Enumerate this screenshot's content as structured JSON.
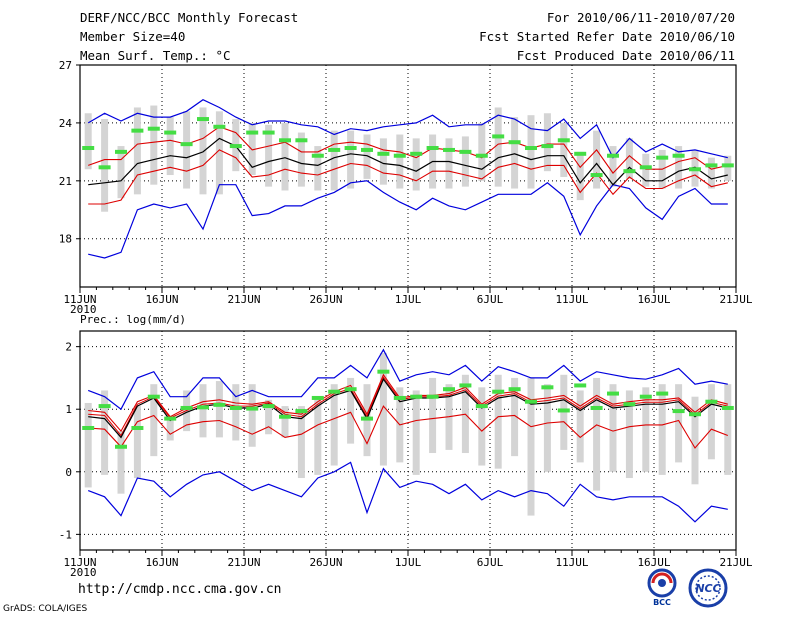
{
  "header": {
    "title": "DERF/NCC/BCC Monthly Forecast",
    "member_size": "Member Size=40",
    "variable": "Mean Surf. Temp.: °C",
    "period": "For 2010/06/11-2010/07/20",
    "fcst_started": "Fcst Started Refer Date 2010/06/10",
    "fcst_produced": "Fcst Produced Date 2010/06/11"
  },
  "footer": {
    "url": "http://cmdp.ncc.cma.gov.cn",
    "credit": "GrADS: COLA/IGES",
    "logo_left": "BCC",
    "logo_right": "NCC"
  },
  "colors": {
    "mean": "#000000",
    "spread": "#dd0000",
    "extreme": "#0000dd",
    "box": "#d4d4d4",
    "marker": "#44dd44"
  },
  "chart_data": [
    {
      "type": "line",
      "title": "Mean Surf. Temp.: °C",
      "xlabel": "",
      "ylabel": "",
      "ylim": [
        15.5,
        27
      ],
      "yticks": [
        18,
        21,
        24,
        27
      ],
      "xticks": [
        {
          "day": 0,
          "label": "11JUN",
          "sub": "2010"
        },
        {
          "day": 5,
          "label": "16JUN"
        },
        {
          "day": 10,
          "label": "21JUN"
        },
        {
          "day": 15,
          "label": "26JUN"
        },
        {
          "day": 20,
          "label": "1JUL"
        },
        {
          "day": 25,
          "label": "6JUL"
        },
        {
          "day": 30,
          "label": "11JUL"
        },
        {
          "day": 35,
          "label": "16JUL"
        },
        {
          "day": 40,
          "label": "21JUL"
        }
      ],
      "x": [
        0,
        1,
        2,
        3,
        4,
        5,
        6,
        7,
        8,
        9,
        10,
        11,
        12,
        13,
        14,
        15,
        16,
        17,
        18,
        19,
        20,
        21,
        22,
        23,
        24,
        25,
        26,
        27,
        28,
        29,
        30,
        31,
        32,
        33,
        34,
        35,
        36,
        37,
        38,
        39
      ],
      "series": [
        {
          "name": "mean",
          "values": [
            20.8,
            20.9,
            21.0,
            21.9,
            22.1,
            22.3,
            22.2,
            22.5,
            23.2,
            22.8,
            21.7,
            22.0,
            22.2,
            21.9,
            21.8,
            22.2,
            22.4,
            22.3,
            21.9,
            21.8,
            21.5,
            22.0,
            22.0,
            21.8,
            21.6,
            22.2,
            22.4,
            22.1,
            22.3,
            22.3,
            20.9,
            21.9,
            20.8,
            21.7,
            21.0,
            21.0,
            21.5,
            21.7,
            21.1,
            21.3
          ]
        },
        {
          "name": "upper",
          "values": [
            21.8,
            22.1,
            22.1,
            22.9,
            23.0,
            23.1,
            22.9,
            23.2,
            23.8,
            23.5,
            22.6,
            22.8,
            23.0,
            22.5,
            22.5,
            22.9,
            23.0,
            22.9,
            22.6,
            22.5,
            22.2,
            22.7,
            22.6,
            22.5,
            22.2,
            22.9,
            23.0,
            22.7,
            22.9,
            22.9,
            21.7,
            22.6,
            21.4,
            22.3,
            21.6,
            21.6,
            22.0,
            22.2,
            21.6,
            21.8
          ]
        },
        {
          "name": "lower",
          "values": [
            19.8,
            19.8,
            20.0,
            21.3,
            21.5,
            21.7,
            21.5,
            21.8,
            22.6,
            22.2,
            21.2,
            21.3,
            21.6,
            21.4,
            21.3,
            21.6,
            21.9,
            21.8,
            21.4,
            21.3,
            21.0,
            21.5,
            21.5,
            21.3,
            21.1,
            21.7,
            21.9,
            21.6,
            21.8,
            21.8,
            20.4,
            21.4,
            20.3,
            21.2,
            20.6,
            20.6,
            21.0,
            21.3,
            20.7,
            20.9
          ]
        },
        {
          "name": "max",
          "values": [
            24.0,
            24.5,
            24.1,
            24.5,
            24.3,
            24.3,
            24.6,
            25.2,
            24.8,
            24.3,
            23.9,
            24.1,
            24.1,
            23.9,
            23.8,
            23.4,
            23.7,
            23.6,
            23.8,
            23.9,
            24.0,
            24.4,
            23.8,
            23.9,
            23.9,
            24.4,
            24.2,
            23.7,
            23.6,
            24.2,
            23.2,
            23.9,
            22.2,
            23.2,
            22.5,
            22.9,
            22.5,
            22.6,
            22.4,
            22.2
          ]
        },
        {
          "name": "min",
          "values": [
            17.2,
            17.0,
            17.3,
            19.5,
            19.8,
            19.6,
            19.8,
            18.5,
            20.8,
            20.8,
            19.2,
            19.3,
            19.7,
            19.7,
            20.1,
            20.4,
            20.9,
            21.0,
            20.4,
            19.9,
            19.5,
            20.1,
            19.7,
            19.5,
            19.9,
            20.3,
            20.3,
            20.3,
            20.9,
            20.2,
            18.2,
            19.7,
            20.8,
            20.6,
            19.6,
            19.0,
            20.2,
            20.6,
            19.8,
            19.8
          ]
        }
      ],
      "boxes": {
        "low": [
          21.6,
          19.4,
          20.1,
          20.3,
          20.8,
          21.3,
          20.6,
          20.3,
          20.3,
          21.5,
          21.3,
          20.7,
          20.5,
          20.7,
          20.5,
          20.5,
          20.6,
          21.1,
          20.8,
          20.6,
          20.5,
          20.6,
          20.6,
          20.7,
          21.0,
          20.7,
          20.6,
          20.6,
          21.5,
          21.2,
          20.0,
          20.6,
          20.7,
          21.1,
          20.7,
          20.6,
          20.6,
          20.7,
          20.6,
          21.0
        ],
        "high": [
          24.5,
          24.2,
          22.8,
          24.8,
          24.9,
          24.3,
          24.6,
          24.8,
          24.6,
          24.2,
          24.0,
          23.9,
          24.0,
          23.5,
          22.8,
          23.6,
          23.6,
          23.4,
          23.2,
          23.4,
          23.2,
          23.4,
          23.2,
          23.3,
          24.0,
          24.8,
          24.3,
          24.4,
          24.5,
          24.0,
          22.5,
          23.6,
          22.8,
          23.2,
          22.4,
          22.6,
          22.8,
          22.6,
          22.2,
          22.3
        ]
      },
      "markers": [
        22.7,
        21.7,
        22.5,
        23.6,
        23.7,
        23.5,
        22.9,
        24.2,
        23.8,
        22.8,
        23.5,
        23.5,
        23.1,
        23.1,
        22.3,
        22.6,
        22.7,
        22.6,
        22.4,
        22.3,
        22.4,
        22.7,
        22.6,
        22.5,
        22.3,
        23.3,
        23.0,
        22.7,
        22.8,
        23.1,
        22.4,
        21.3,
        22.3,
        21.5,
        21.7,
        22.2,
        22.3,
        21.6,
        21.8,
        21.8
      ]
    },
    {
      "type": "line",
      "title": "Prec.: log(mm/d)",
      "xlabel": "",
      "ylabel": "",
      "ylim": [
        -1.25,
        2.25
      ],
      "yticks": [
        -1,
        0,
        1,
        2
      ],
      "xticks": [
        {
          "day": 0,
          "label": "11JUN",
          "sub": "2010"
        },
        {
          "day": 5,
          "label": "16JUN"
        },
        {
          "day": 10,
          "label": "21JUN"
        },
        {
          "day": 15,
          "label": "26JUN"
        },
        {
          "day": 20,
          "label": "1JUL"
        },
        {
          "day": 25,
          "label": "6JUL"
        },
        {
          "day": 30,
          "label": "11JUL"
        },
        {
          "day": 35,
          "label": "16JUL"
        },
        {
          "day": 40,
          "label": "21JUL"
        }
      ],
      "x": [
        0,
        1,
        2,
        3,
        4,
        5,
        6,
        7,
        8,
        9,
        10,
        11,
        12,
        13,
        14,
        15,
        16,
        17,
        18,
        19,
        20,
        21,
        22,
        23,
        24,
        25,
        26,
        27,
        28,
        29,
        30,
        31,
        32,
        33,
        34,
        35,
        36,
        37,
        38,
        39
      ],
      "series": [
        {
          "name": "mean",
          "values": [
            0.88,
            0.85,
            0.55,
            1.05,
            1.18,
            0.82,
            0.95,
            1.05,
            1.08,
            1.02,
            1.02,
            1.08,
            0.88,
            0.85,
            1.05,
            1.22,
            1.3,
            0.85,
            1.48,
            1.12,
            1.18,
            1.18,
            1.2,
            1.28,
            1.02,
            1.18,
            1.22,
            1.08,
            1.1,
            1.15,
            0.98,
            1.15,
            1.02,
            1.05,
            1.08,
            1.08,
            1.12,
            0.88,
            1.08,
            1.02
          ]
        },
        {
          "name": "upper",
          "values": [
            0.98,
            0.95,
            0.65,
            1.12,
            1.22,
            0.88,
            1.02,
            1.12,
            1.15,
            1.1,
            1.08,
            1.12,
            0.95,
            0.92,
            1.12,
            1.28,
            1.38,
            0.92,
            1.55,
            1.18,
            1.22,
            1.22,
            1.25,
            1.35,
            1.08,
            1.25,
            1.28,
            1.15,
            1.18,
            1.22,
            1.05,
            1.22,
            1.08,
            1.12,
            1.15,
            1.15,
            1.18,
            0.95,
            1.15,
            1.08
          ]
        },
        {
          "name": "lower",
          "values": [
            0.7,
            0.68,
            0.4,
            0.8,
            0.9,
            0.6,
            0.75,
            0.8,
            0.82,
            0.72,
            0.6,
            0.72,
            0.55,
            0.6,
            0.75,
            0.85,
            0.95,
            0.45,
            1.05,
            0.75,
            0.82,
            0.85,
            0.88,
            0.92,
            0.65,
            0.88,
            0.9,
            0.72,
            0.78,
            0.8,
            0.55,
            0.75,
            0.65,
            0.72,
            0.75,
            0.75,
            0.82,
            0.38,
            0.68,
            0.58
          ]
        },
        {
          "name": "max",
          "values": [
            1.3,
            1.2,
            1.0,
            1.5,
            1.6,
            1.2,
            1.2,
            1.5,
            1.5,
            1.2,
            1.3,
            1.2,
            1.2,
            1.2,
            1.5,
            1.5,
            1.7,
            1.5,
            1.95,
            1.45,
            1.55,
            1.6,
            1.55,
            1.7,
            1.45,
            1.68,
            1.6,
            1.5,
            1.5,
            1.7,
            1.45,
            1.6,
            1.55,
            1.5,
            1.48,
            1.55,
            1.65,
            1.4,
            1.45,
            1.4
          ]
        },
        {
          "name": "min",
          "values": [
            -0.3,
            -0.4,
            -0.7,
            -0.1,
            -0.15,
            -0.4,
            -0.2,
            -0.05,
            0.0,
            -0.15,
            -0.3,
            -0.2,
            -0.3,
            -0.4,
            -0.1,
            0.0,
            0.15,
            -0.65,
            0.05,
            -0.25,
            -0.15,
            -0.2,
            -0.35,
            -0.2,
            -0.45,
            -0.3,
            -0.4,
            -0.3,
            -0.35,
            -0.55,
            -0.2,
            -0.4,
            -0.45,
            -0.4,
            -0.4,
            -0.4,
            -0.55,
            -0.8,
            -0.55,
            -0.6
          ]
        },
        {
          "name": "mid",
          "values": [
            0.92,
            0.9,
            0.58,
            1.08,
            1.2,
            0.86,
            0.98,
            1.08,
            1.1,
            1.05,
            1.05,
            1.1,
            0.92,
            0.88,
            1.08,
            1.25,
            1.33,
            0.88,
            1.51,
            1.15,
            1.2,
            1.2,
            1.22,
            1.31,
            1.05,
            1.21,
            1.25,
            1.11,
            1.14,
            1.18,
            1.01,
            1.18,
            1.05,
            1.08,
            1.11,
            1.11,
            1.15,
            0.91,
            1.11,
            1.05
          ]
        }
      ],
      "boxes": {
        "low": [
          -0.25,
          -0.05,
          -0.35,
          -0.1,
          0.25,
          0.5,
          0.65,
          0.55,
          0.55,
          0.5,
          0.4,
          0.6,
          0.55,
          -0.1,
          -0.05,
          0.1,
          0.45,
          0.25,
          0.1,
          0.15,
          -0.05,
          0.3,
          0.35,
          0.3,
          0.1,
          0.05,
          0.25,
          -0.7,
          0.0,
          0.35,
          0.15,
          -0.3,
          0.0,
          -0.1,
          0.0,
          -0.05,
          0.15,
          -0.2,
          0.2,
          -0.05
        ],
        "high": [
          1.1,
          1.3,
          0.65,
          1.05,
          1.4,
          0.9,
          1.3,
          1.4,
          1.45,
          1.4,
          1.4,
          1.15,
          1.05,
          1.05,
          1.15,
          1.4,
          1.5,
          1.4,
          1.9,
          1.35,
          1.3,
          1.5,
          1.4,
          1.55,
          1.35,
          1.55,
          1.5,
          1.5,
          1.4,
          1.55,
          1.3,
          1.5,
          1.4,
          1.3,
          1.35,
          1.4,
          1.4,
          1.2,
          1.4,
          1.4
        ]
      },
      "markers": [
        0.7,
        1.05,
        0.4,
        0.7,
        1.2,
        0.85,
        1.02,
        1.03,
        1.07,
        1.02,
        1.01,
        1.05,
        0.88,
        0.97,
        1.18,
        1.28,
        1.32,
        0.85,
        1.6,
        1.18,
        1.2,
        1.2,
        1.32,
        1.38,
        1.05,
        1.28,
        1.32,
        1.12,
        1.35,
        0.98,
        1.38,
        1.02,
        1.25,
        1.08,
        1.2,
        1.25,
        0.97,
        0.92,
        1.12,
        1.02
      ]
    }
  ]
}
